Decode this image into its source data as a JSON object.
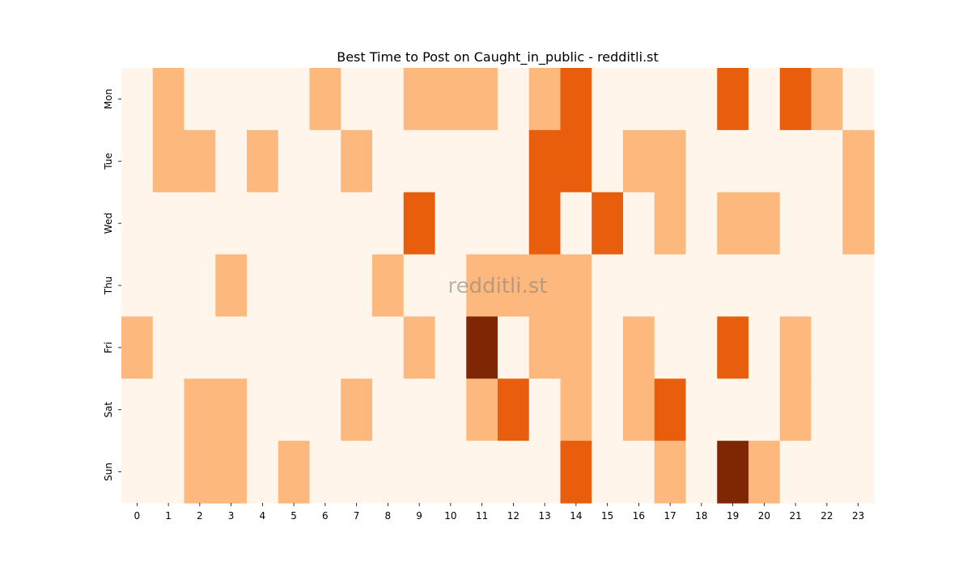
{
  "chart_data": {
    "type": "heatmap",
    "title": "Best Time to Post on Caught_in_public - redditli.st",
    "watermark": "redditli.st",
    "x_categories": [
      "0",
      "1",
      "2",
      "3",
      "4",
      "5",
      "6",
      "7",
      "8",
      "9",
      "10",
      "11",
      "12",
      "13",
      "14",
      "15",
      "16",
      "17",
      "18",
      "19",
      "20",
      "21",
      "22",
      "23"
    ],
    "y_categories": [
      "Mon",
      "Tue",
      "Wed",
      "Thu",
      "Fri",
      "Sat",
      "Sun"
    ],
    "xlabel": "",
    "ylabel": "",
    "value_range": [
      0,
      3
    ],
    "colormap": [
      "#fff5eb",
      "#fdb97d",
      "#e95e0d",
      "#7f2704"
    ],
    "values": [
      [
        0,
        1,
        0,
        0,
        0,
        0,
        1,
        0,
        0,
        1,
        1,
        1,
        0,
        1,
        2,
        0,
        0,
        0,
        0,
        2,
        0,
        2,
        1,
        0
      ],
      [
        0,
        1,
        1,
        0,
        1,
        0,
        0,
        1,
        0,
        0,
        0,
        0,
        0,
        2,
        2,
        0,
        1,
        1,
        0,
        0,
        0,
        0,
        0,
        1
      ],
      [
        0,
        0,
        0,
        0,
        0,
        0,
        0,
        0,
        0,
        2,
        0,
        0,
        0,
        2,
        0,
        2,
        0,
        1,
        0,
        1,
        1,
        0,
        0,
        1
      ],
      [
        0,
        0,
        0,
        1,
        0,
        0,
        0,
        0,
        1,
        0,
        0,
        1,
        1,
        1,
        1,
        0,
        0,
        0,
        0,
        0,
        0,
        0,
        0,
        0
      ],
      [
        1,
        0,
        0,
        0,
        0,
        0,
        0,
        0,
        0,
        1,
        0,
        3,
        0,
        1,
        1,
        0,
        1,
        0,
        0,
        2,
        0,
        1,
        0,
        0
      ],
      [
        0,
        0,
        1,
        1,
        0,
        0,
        0,
        1,
        0,
        0,
        0,
        1,
        2,
        0,
        1,
        0,
        1,
        2,
        0,
        0,
        0,
        1,
        0,
        0
      ],
      [
        0,
        0,
        1,
        1,
        0,
        1,
        0,
        0,
        0,
        0,
        0,
        0,
        0,
        0,
        2,
        0,
        0,
        1,
        0,
        3,
        1,
        0,
        0,
        0
      ]
    ]
  }
}
